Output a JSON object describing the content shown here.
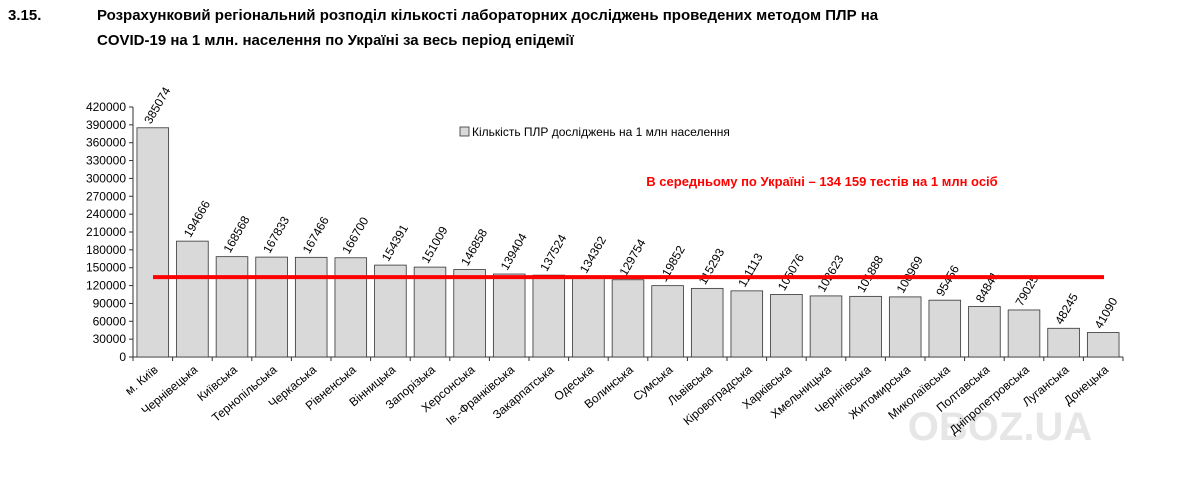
{
  "chart_data": {
    "type": "bar",
    "section": "3.15.",
    "title": [
      "Розрахунковий регіональний розподіл кількості лабораторних досліджень проведених методом ПЛР на",
      "COVID-19 на 1 млн. населення по Україні за весь період епідемії"
    ],
    "categories": [
      "м. Київ",
      "Чернівецька",
      "Київська",
      "Тернопільська",
      "Черкаська",
      "Рівненська",
      "Вінницька",
      "Запорізька",
      "Херсонська",
      "Ів.-Франківська",
      "Закарпатська",
      "Одеська",
      "Волинська",
      "Сумська",
      "Львівська",
      "Кіровоградська",
      "Харківська",
      "Хмельницька",
      "Чернігівська",
      "Житомирська",
      "Миколаївська",
      "Полтавська",
      "Дніпропетровська",
      "Луганська",
      "Донецька"
    ],
    "series": [
      {
        "name": "Кількість ПЛР досліджень на 1 млн населення",
        "color": "#d9d9d9",
        "values": [
          385074,
          194666,
          168568,
          167833,
          167466,
          166700,
          154391,
          151009,
          146858,
          139404,
          137524,
          134362,
          129754,
          119852,
          115293,
          111113,
          105076,
          102623,
          101888,
          100969,
          95456,
          84841,
          79025,
          48245,
          41090
        ]
      }
    ],
    "average": {
      "value": 134159,
      "color": "#ff0000",
      "label": "В середньому по Україні – 134 159 тестів на 1 млн осіб"
    },
    "ylim": [
      0,
      420000
    ],
    "yticks": [
      0,
      30000,
      60000,
      90000,
      120000,
      150000,
      180000,
      210000,
      240000,
      270000,
      300000,
      330000,
      360000,
      390000,
      420000
    ],
    "legend": "top",
    "watermark": "OBOZ.UA"
  }
}
